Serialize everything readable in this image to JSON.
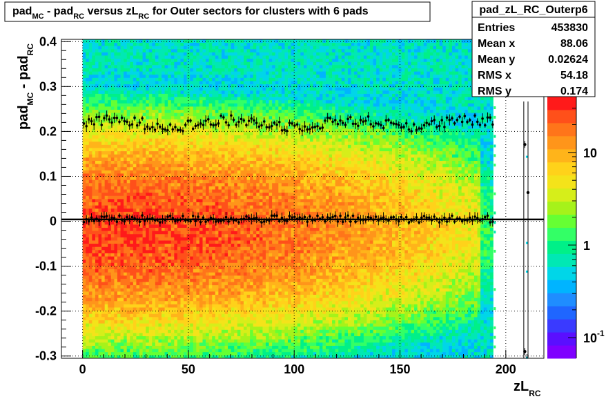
{
  "chart_data": {
    "type": "heatmap",
    "title": {
      "t1": "pad",
      "s1": "MC",
      "t2": " - pad",
      "s2": "RC",
      "t3": " versus zL",
      "s3": "RC",
      "t4": " for Outer sectors for clusters with 6 pads"
    },
    "xlabel": {
      "main": "zL",
      "sub": "RC"
    },
    "ylabel": {
      "t1": "pad",
      "s1": "MC",
      "t2": " - pad",
      "s2": "RC"
    },
    "xlim": [
      -10,
      218
    ],
    "ylim": [
      -0.305,
      0.405
    ],
    "x_ticks": [
      {
        "v": 0,
        "label": "0"
      },
      {
        "v": 50,
        "label": "50"
      },
      {
        "v": 100,
        "label": "100"
      },
      {
        "v": 150,
        "label": "150"
      },
      {
        "v": 200,
        "label": "200"
      }
    ],
    "y_ticks": [
      {
        "v": 0.4,
        "label": "0.4"
      },
      {
        "v": 0.3,
        "label": "0.3"
      },
      {
        "v": 0.2,
        "label": "0.2"
      },
      {
        "v": 0.1,
        "label": "0.1"
      },
      {
        "v": 0,
        "label": "0"
      },
      {
        "v": -0.1,
        "label": "-0.1"
      },
      {
        "v": -0.2,
        "label": "-0.2"
      },
      {
        "v": -0.3,
        "label": "-0.3"
      }
    ],
    "grid": true,
    "log_z": true,
    "z_range": [
      0.06,
      40
    ],
    "z_ticks": [
      {
        "v": 10,
        "base": "10",
        "exp": ""
      },
      {
        "v": 1,
        "base": "1",
        "exp": ""
      },
      {
        "v": 0.1,
        "base": "10",
        "exp": "-1"
      }
    ],
    "palette": [
      "#7f00ff",
      "#5a0fff",
      "#3a3aff",
      "#1f66ff",
      "#1f8dff",
      "#00b4ff",
      "#00d6e8",
      "#00e8b4",
      "#00f088",
      "#33ff66",
      "#66ff33",
      "#a6f21a",
      "#d6ee1a",
      "#f4e31a",
      "#ffd21a",
      "#ffb41a",
      "#ff951a",
      "#ff751a",
      "#ff501a",
      "#ff1a1a"
    ],
    "density_model": {
      "x_range": [
        0,
        194
      ],
      "bins_x": 130,
      "bins_y": 100,
      "peak_x": 15,
      "peak_y": -0.02,
      "core_max": 28
    },
    "reference_line": {
      "y": 0.004,
      "color": "#000000"
    },
    "profiles": [
      {
        "name": "mean",
        "y": 0.005,
        "spread": 0.008,
        "x_range": [
          0,
          194
        ]
      },
      {
        "name": "rms",
        "y": 0.218,
        "spread": 0.012,
        "x_range": [
          0,
          194
        ]
      }
    ],
    "sparse_points": [
      {
        "x": 209,
        "y": 0.171
      },
      {
        "x": 210.5,
        "y": 0.064
      },
      {
        "x": 209,
        "y": -0.29
      }
    ],
    "vertical_lines": [
      {
        "x": 208.5
      },
      {
        "x": 210.5
      }
    ],
    "stats": {
      "name": "pad_zL_RC_Outerp6",
      "rows": [
        {
          "label": "Entries",
          "value": "453830"
        },
        {
          "label": "Mean x",
          "value": "88.06"
        },
        {
          "label": "Mean y",
          "value": "0.02624"
        },
        {
          "label": "RMS x",
          "value": "54.18"
        },
        {
          "label": "RMS y",
          "value": "0.174"
        }
      ]
    }
  }
}
